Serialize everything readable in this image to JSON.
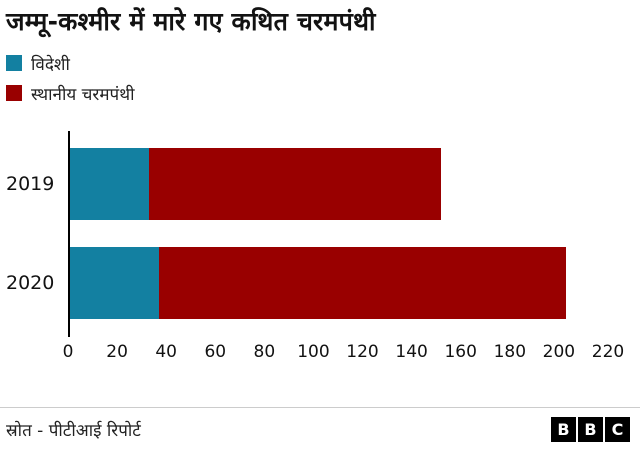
{
  "title": "जम्मू-कश्मीर में मारे गए कथित चरमपंथी",
  "legend": [
    {
      "label": "विदेशी",
      "color": "#1380A1"
    },
    {
      "label": "स्थानीय चरमपंथी",
      "color": "#990000"
    }
  ],
  "chart_data": {
    "type": "bar",
    "orientation": "horizontal",
    "stacked": true,
    "title": "जम्मू-कश्मीर में मारे गए कथित चरमपंथी",
    "categories": [
      "2019",
      "2020"
    ],
    "series": [
      {
        "name": "विदेशी",
        "color": "#1380A1",
        "values": [
          33,
          37
        ]
      },
      {
        "name": "स्थानीय चरमपंथी",
        "color": "#990000",
        "values": [
          119,
          166
        ]
      }
    ],
    "totals": [
      152,
      203
    ],
    "xlabel": "",
    "ylabel": "",
    "xlim": [
      0,
      220
    ],
    "xticks": [
      0,
      20,
      40,
      60,
      80,
      100,
      120,
      140,
      160,
      180,
      200,
      220
    ],
    "grid": false,
    "legend_position": "top-left"
  },
  "footer": {
    "source": "स्रोत - पीटीआई रिपोर्ट",
    "logo_letters": [
      "B",
      "B",
      "C"
    ]
  }
}
